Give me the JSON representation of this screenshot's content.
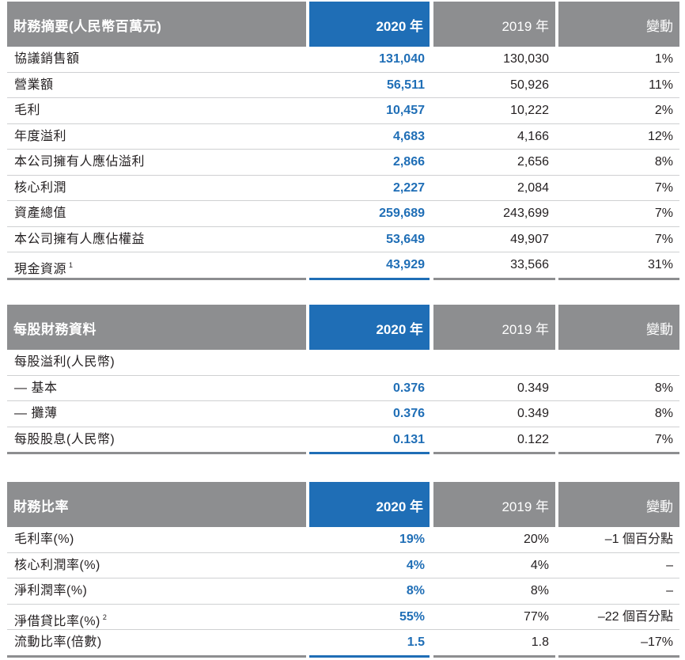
{
  "tables": [
    {
      "header": {
        "label": "財務摘要(人民幣百萬元)",
        "y2020": "2020 年",
        "y2019": "2019 年",
        "change": "變動"
      },
      "rows": [
        {
          "label": "協議銷售額",
          "note": "",
          "v2020": "131,040",
          "v2019": "130,030",
          "change": "1%"
        },
        {
          "label": "營業額",
          "note": "",
          "v2020": "56,511",
          "v2019": "50,926",
          "change": "11%"
        },
        {
          "label": "毛利",
          "note": "",
          "v2020": "10,457",
          "v2019": "10,222",
          "change": "2%"
        },
        {
          "label": "年度溢利",
          "note": "",
          "v2020": "4,683",
          "v2019": "4,166",
          "change": "12%"
        },
        {
          "label": "本公司擁有人應佔溢利",
          "note": "",
          "v2020": "2,866",
          "v2019": "2,656",
          "change": "8%"
        },
        {
          "label": "核心利潤",
          "note": "",
          "v2020": "2,227",
          "v2019": "2,084",
          "change": "7%"
        },
        {
          "label": "資產總值",
          "note": "",
          "v2020": "259,689",
          "v2019": "243,699",
          "change": "7%"
        },
        {
          "label": "本公司擁有人應佔權益",
          "note": "",
          "v2020": "53,649",
          "v2019": "49,907",
          "change": "7%"
        },
        {
          "label": "現金資源",
          "note": "1",
          "v2020": "43,929",
          "v2019": "33,566",
          "change": "31%"
        }
      ]
    },
    {
      "header": {
        "label": "每股財務資料",
        "y2020": "2020 年",
        "y2019": "2019 年",
        "change": "變動"
      },
      "rows": [
        {
          "label": "每股溢利(人民幣)",
          "note": "",
          "v2020": "",
          "v2019": "",
          "change": ""
        },
        {
          "label": "— 基本",
          "note": "",
          "v2020": "0.376",
          "v2019": "0.349",
          "change": "8%"
        },
        {
          "label": "— 攤薄",
          "note": "",
          "v2020": "0.376",
          "v2019": "0.349",
          "change": "8%"
        },
        {
          "label": "每股股息(人民幣)",
          "note": "",
          "v2020": "0.131",
          "v2019": "0.122",
          "change": "7%"
        }
      ]
    },
    {
      "header": {
        "label": "財務比率",
        "y2020": "2020 年",
        "y2019": "2019 年",
        "change": "變動"
      },
      "rows": [
        {
          "label": "毛利率(%)",
          "note": "",
          "v2020": "19%",
          "v2019": "20%",
          "change": "–1 個百分點"
        },
        {
          "label": "核心利潤率(%)",
          "note": "",
          "v2020": "4%",
          "v2019": "4%",
          "change": "–"
        },
        {
          "label": "淨利潤率(%)",
          "note": "",
          "v2020": "8%",
          "v2019": "8%",
          "change": "–"
        },
        {
          "label": "淨借貸比率(%)",
          "note": "2",
          "v2020": "55%",
          "v2019": "77%",
          "change": "–22 個百分點"
        },
        {
          "label": "流動比率(倍數)",
          "note": "",
          "v2020": "1.5",
          "v2019": "1.8",
          "change": "–17%"
        }
      ]
    }
  ]
}
